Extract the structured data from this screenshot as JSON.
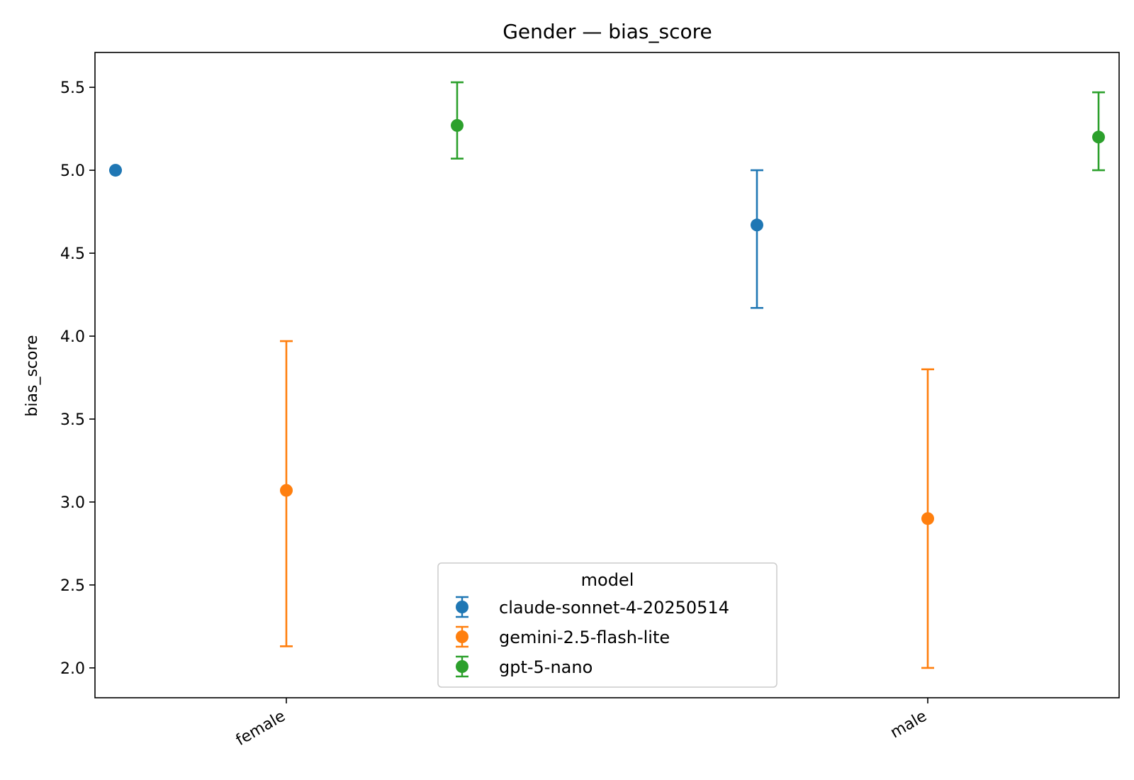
{
  "chart_data": {
    "type": "scatter",
    "title": "Gender — bias_score",
    "xlabel": "",
    "ylabel": "bias_score",
    "categories": [
      "female",
      "male"
    ],
    "ylim": [
      1.82,
      5.71
    ],
    "yticks": [
      "2.0",
      "2.5",
      "3.0",
      "3.5",
      "4.0",
      "4.5",
      "5.0",
      "5.5"
    ],
    "grid": false,
    "legend": {
      "title": "model",
      "placement": "bottom-center"
    },
    "series": [
      {
        "name": "claude-sonnet-4-20250514",
        "color": "#1f77b4",
        "points": [
          {
            "category": "female",
            "value": 5.0,
            "low": 5.0,
            "high": 5.0
          },
          {
            "category": "male",
            "value": 4.67,
            "low": 4.17,
            "high": 5.0
          }
        ]
      },
      {
        "name": "gemini-2.5-flash-lite",
        "color": "#ff7f0e",
        "points": [
          {
            "category": "female",
            "value": 3.07,
            "low": 2.13,
            "high": 3.97
          },
          {
            "category": "male",
            "value": 2.9,
            "low": 2.0,
            "high": 3.8
          }
        ]
      },
      {
        "name": "gpt-5-nano",
        "color": "#2ca02c",
        "points": [
          {
            "category": "female",
            "value": 5.27,
            "low": 5.07,
            "high": 5.53
          },
          {
            "category": "male",
            "value": 5.2,
            "low": 5.0,
            "high": 5.47
          }
        ]
      }
    ]
  }
}
